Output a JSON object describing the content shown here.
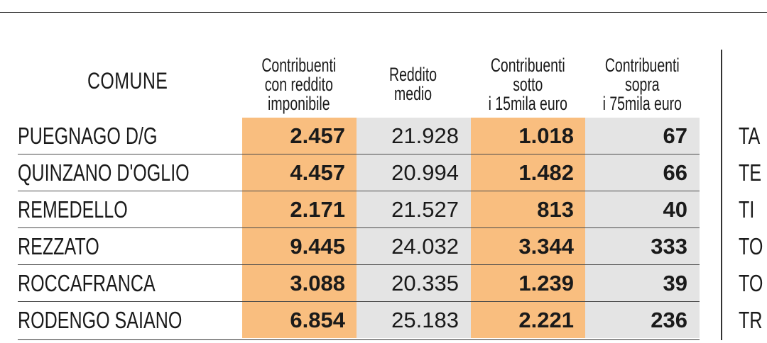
{
  "headers": {
    "comune": "COMUNE",
    "col1": "Contribuenti\ncon reddito\nimponibile",
    "col2": "Reddito\nmedio",
    "col3": "Contribuenti\nsotto\ni 15mila euro",
    "col4": "Contribuenti\nsopra\ni 75mila euro"
  },
  "rows": [
    {
      "comune": "PUEGNAGO D/G",
      "contribuenti": "2.457",
      "reddito_medio": "21.928",
      "sotto_15mila": "1.018",
      "sopra_75mila": "67"
    },
    {
      "comune": "QUINZANO D'OGLIO",
      "contribuenti": "4.457",
      "reddito_medio": "20.994",
      "sotto_15mila": "1.482",
      "sopra_75mila": "66"
    },
    {
      "comune": "REMEDELLO",
      "contribuenti": "2.171",
      "reddito_medio": "21.527",
      "sotto_15mila": "813",
      "sopra_75mila": "40"
    },
    {
      "comune": "REZZATO",
      "contribuenti": "9.445",
      "reddito_medio": "24.032",
      "sotto_15mila": "3.344",
      "sopra_75mila": "333"
    },
    {
      "comune": "ROCCAFRANCA",
      "contribuenti": "3.088",
      "reddito_medio": "20.335",
      "sotto_15mila": "1.239",
      "sopra_75mila": "39"
    },
    {
      "comune": "RODENGO SAIANO",
      "contribuenti": "6.854",
      "reddito_medio": "25.183",
      "sotto_15mila": "2.221",
      "sopra_75mila": "236"
    }
  ],
  "right_column_cut": [
    "TA",
    "TE",
    "TI",
    "TO",
    "TO",
    "TR"
  ],
  "colors": {
    "orange": "#f9be7f",
    "gray": "#e4e4e4"
  }
}
